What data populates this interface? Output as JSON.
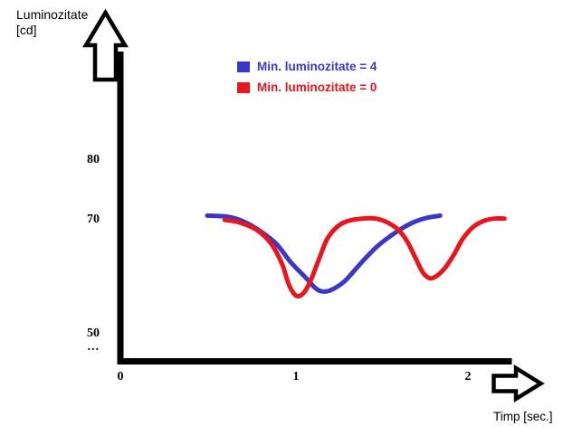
{
  "y_axis_title": {
    "line1": "Luminozitate",
    "line2": "[cd]"
  },
  "x_axis_title": "Timp [sec.]",
  "ticks": {
    "y": [
      "80",
      "70",
      "50",
      "..."
    ],
    "x": [
      "0",
      "1",
      "2"
    ]
  },
  "legend": {
    "items": [
      {
        "label": "Min. luminozitate = 4",
        "color": "#3b38c8"
      },
      {
        "label": "Min. luminozitate = 0",
        "color": "#e8151d"
      }
    ]
  },
  "colors": {
    "axis": "#000000",
    "background": "#ffffff",
    "series_blue": "#3b38c8",
    "series_red": "#e8151d"
  },
  "chart_data": {
    "type": "line",
    "title": "",
    "xlabel": "Timp [sec.]",
    "ylabel": "Luminozitate [cd]",
    "xlim": [
      0,
      2.25
    ],
    "ylim": [
      50,
      85
    ],
    "x_ticks": [
      0,
      1,
      2
    ],
    "y_ticks": [
      50,
      70,
      80
    ],
    "grid": false,
    "legend_position": "top-center",
    "series": [
      {
        "name": "Min. luminozitate = 4",
        "color": "#3b38c8",
        "min_value": 58,
        "points": [
          [
            0.5,
            70.7
          ],
          [
            0.62,
            70.5
          ],
          [
            0.71,
            69.7
          ],
          [
            0.81,
            68.0
          ],
          [
            0.9,
            65.9
          ],
          [
            0.98,
            62.9
          ],
          [
            1.07,
            60.2
          ],
          [
            1.12,
            58.6
          ],
          [
            1.16,
            58.0
          ],
          [
            1.21,
            58.2
          ],
          [
            1.29,
            59.7
          ],
          [
            1.38,
            62.6
          ],
          [
            1.48,
            65.6
          ],
          [
            1.59,
            68.0
          ],
          [
            1.68,
            69.5
          ],
          [
            1.76,
            70.3
          ],
          [
            1.84,
            70.7
          ]
        ]
      },
      {
        "name": "Min. luminozitate = 0",
        "color": "#e8151d",
        "min_value": 57,
        "points": [
          [
            0.6,
            70.0
          ],
          [
            0.69,
            69.5
          ],
          [
            0.79,
            68.2
          ],
          [
            0.87,
            65.9
          ],
          [
            0.93,
            62.6
          ],
          [
            0.97,
            59.1
          ],
          [
            1.01,
            57.3
          ],
          [
            1.05,
            57.6
          ],
          [
            1.09,
            59.5
          ],
          [
            1.14,
            63.2
          ],
          [
            1.19,
            66.8
          ],
          [
            1.25,
            68.9
          ],
          [
            1.31,
            69.8
          ],
          [
            1.39,
            70.2
          ],
          [
            1.47,
            70.2
          ],
          [
            1.54,
            69.5
          ],
          [
            1.6,
            68.3
          ],
          [
            1.65,
            66.4
          ],
          [
            1.7,
            63.5
          ],
          [
            1.74,
            61.2
          ],
          [
            1.78,
            60.2
          ],
          [
            1.82,
            60.6
          ],
          [
            1.87,
            62.0
          ],
          [
            1.92,
            64.2
          ],
          [
            1.97,
            66.8
          ],
          [
            2.03,
            68.8
          ],
          [
            2.09,
            69.8
          ],
          [
            2.15,
            70.2
          ],
          [
            2.21,
            70.2
          ]
        ]
      }
    ]
  }
}
